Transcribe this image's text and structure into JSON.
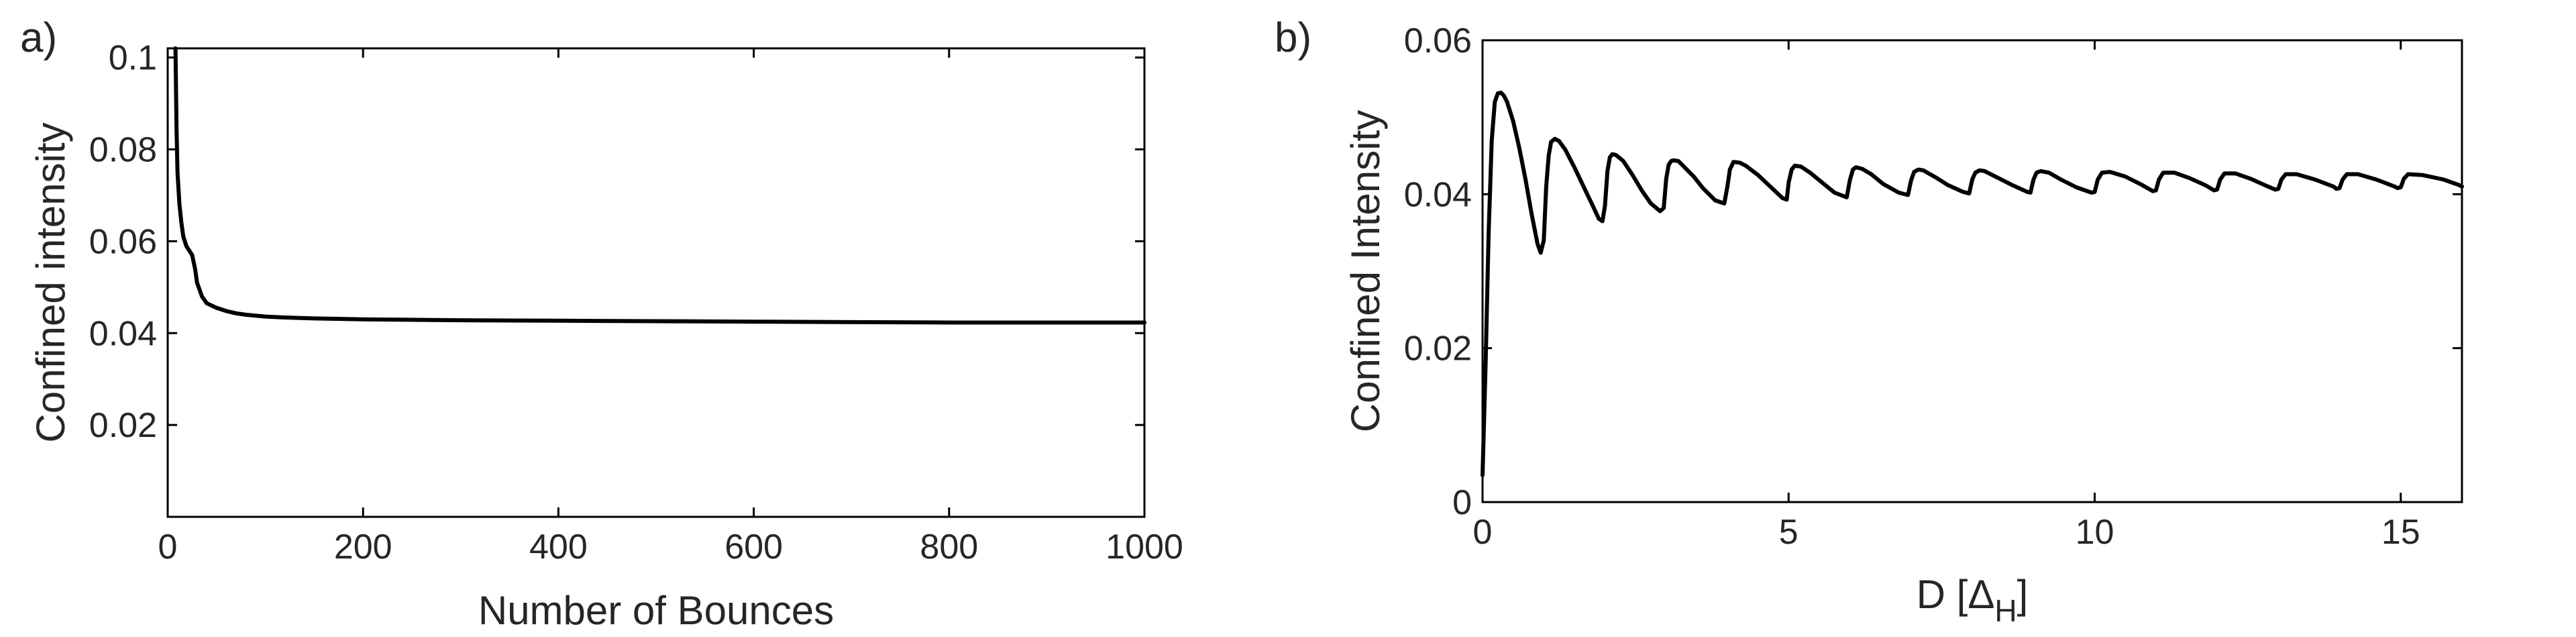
{
  "chart_data": [
    {
      "type": "line",
      "panel_label": "a)",
      "xlabel": "Number of Bounces",
      "ylabel": "Confined intensity",
      "xlim": [
        0,
        1000
      ],
      "ylim": [
        0,
        0.102
      ],
      "xticks": [
        0,
        200,
        400,
        600,
        800,
        1000
      ],
      "xtick_labels": [
        "0",
        "200",
        "400",
        "600",
        "800",
        "1000"
      ],
      "yticks": [
        0.02,
        0.04,
        0.06,
        0.08,
        0.1
      ],
      "ytick_labels": [
        "0.02",
        "0.04",
        "0.06",
        "0.08",
        "0.1"
      ],
      "grid": false,
      "line_color": "#000000",
      "series": [
        {
          "x": [
            8,
            9,
            10,
            12,
            14,
            16,
            19,
            22,
            25,
            28,
            30,
            35,
            40,
            50,
            60,
            70,
            80,
            100,
            120,
            150,
            200,
            300,
            400,
            500,
            600,
            700,
            800,
            900,
            1000
          ],
          "y": [
            0.102,
            0.085,
            0.075,
            0.068,
            0.064,
            0.061,
            0.059,
            0.058,
            0.057,
            0.054,
            0.051,
            0.048,
            0.0465,
            0.0455,
            0.0448,
            0.0443,
            0.044,
            0.0436,
            0.0434,
            0.0432,
            0.043,
            0.0428,
            0.0427,
            0.0426,
            0.0425,
            0.0424,
            0.0423,
            0.0423,
            0.0423
          ]
        }
      ]
    },
    {
      "type": "line",
      "panel_label": "b)",
      "xlabel": "D [Δ",
      "xlabel_sub": "H",
      "xlabel_suffix": "]",
      "ylabel": "Confined Intensity",
      "xlim": [
        0,
        16
      ],
      "ylim": [
        0,
        0.06
      ],
      "xticks": [
        0,
        5,
        10,
        15
      ],
      "xtick_labels": [
        "0",
        "5",
        "10",
        "15"
      ],
      "yticks": [
        0,
        0.02,
        0.04,
        0.06
      ],
      "ytick_labels": [
        "0",
        "0.02",
        "0.04",
        "0.06"
      ],
      "grid": false,
      "line_color": "#000000",
      "series": [
        {
          "x": [
            0.0,
            0.05,
            0.1,
            0.15,
            0.2,
            0.25,
            0.3,
            0.35,
            0.4,
            0.5,
            0.6,
            0.7,
            0.8,
            0.9,
            0.95,
            1.0,
            1.04,
            1.08,
            1.12,
            1.18,
            1.25,
            1.35,
            1.5,
            1.65,
            1.8,
            1.9,
            1.96,
            2.0,
            2.04,
            2.08,
            2.12,
            2.18,
            2.3,
            2.45,
            2.6,
            2.75,
            2.9,
            2.96,
            3.0,
            3.04,
            3.08,
            3.12,
            3.2,
            3.3,
            3.45,
            3.6,
            3.8,
            3.95,
            4.0,
            4.04,
            4.1,
            4.2,
            4.3,
            4.5,
            4.7,
            4.9,
            4.97,
            5.0,
            5.05,
            5.1,
            5.2,
            5.35,
            5.55,
            5.75,
            5.95,
            6.0,
            6.05,
            6.1,
            6.2,
            6.35,
            6.55,
            6.8,
            6.95,
            7.0,
            7.05,
            7.12,
            7.2,
            7.4,
            7.6,
            7.85,
            7.95,
            8.0,
            8.05,
            8.12,
            8.2,
            8.4,
            8.65,
            8.9,
            8.95,
            9.0,
            9.05,
            9.12,
            9.25,
            9.45,
            9.7,
            9.95,
            10.0,
            10.05,
            10.12,
            10.25,
            10.5,
            10.75,
            10.95,
            11.0,
            11.05,
            11.12,
            11.3,
            11.55,
            11.8,
            11.95,
            12.0,
            12.05,
            12.12,
            12.3,
            12.55,
            12.8,
            12.95,
            13.0,
            13.05,
            13.12,
            13.3,
            13.6,
            13.9,
            13.95,
            14.0,
            14.05,
            14.12,
            14.3,
            14.6,
            14.9,
            14.95,
            15.0,
            15.05,
            15.12,
            15.35,
            15.7,
            15.95,
            16.0
          ],
          "y": [
            0.0035,
            0.018,
            0.035,
            0.047,
            0.052,
            0.0531,
            0.0532,
            0.0528,
            0.052,
            0.0495,
            0.046,
            0.042,
            0.0375,
            0.0335,
            0.0324,
            0.034,
            0.041,
            0.045,
            0.0468,
            0.0472,
            0.0469,
            0.0458,
            0.0435,
            0.041,
            0.0385,
            0.0368,
            0.0365,
            0.0385,
            0.043,
            0.0448,
            0.0452,
            0.0451,
            0.0443,
            0.0425,
            0.0405,
            0.0388,
            0.0378,
            0.0382,
            0.042,
            0.0438,
            0.0443,
            0.0444,
            0.0443,
            0.0435,
            0.0423,
            0.0408,
            0.0392,
            0.0388,
            0.041,
            0.0432,
            0.0442,
            0.0441,
            0.0437,
            0.0425,
            0.041,
            0.0395,
            0.0393,
            0.0415,
            0.0432,
            0.0437,
            0.0436,
            0.0428,
            0.0415,
            0.0402,
            0.0396,
            0.0418,
            0.0432,
            0.0435,
            0.0433,
            0.0426,
            0.0413,
            0.0402,
            0.0399,
            0.0418,
            0.0429,
            0.0432,
            0.0431,
            0.0422,
            0.0412,
            0.0403,
            0.0401,
            0.0419,
            0.0428,
            0.0431,
            0.043,
            0.0422,
            0.0412,
            0.0403,
            0.0402,
            0.0419,
            0.0428,
            0.043,
            0.0428,
            0.0419,
            0.0409,
            0.0402,
            0.0403,
            0.0419,
            0.0428,
            0.0429,
            0.0423,
            0.0413,
            0.0404,
            0.0405,
            0.0419,
            0.0428,
            0.0428,
            0.0421,
            0.0412,
            0.0405,
            0.0406,
            0.0419,
            0.0427,
            0.0427,
            0.042,
            0.0411,
            0.0406,
            0.0407,
            0.0419,
            0.0426,
            0.0426,
            0.0419,
            0.041,
            0.0407,
            0.0408,
            0.0419,
            0.0426,
            0.0426,
            0.0419,
            0.041,
            0.0408,
            0.0409,
            0.042,
            0.0426,
            0.0425,
            0.0419,
            0.0412,
            0.041
          ]
        }
      ]
    }
  ]
}
